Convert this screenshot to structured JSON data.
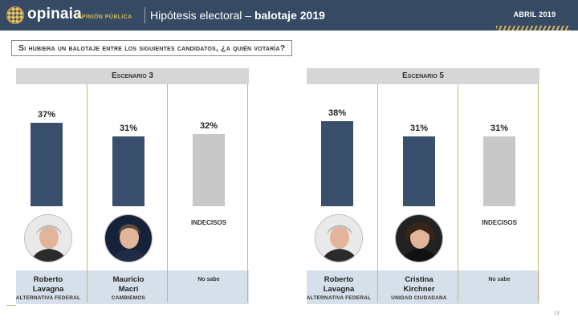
{
  "header": {
    "brand": "opinaia",
    "brand_sub": "OPINIÓN PÚBLICA",
    "title_plain": "Hipótesis electoral – ",
    "title_bold": "balotaje 2019",
    "date": "ABRIL 2019"
  },
  "question": "Si hubiera un balotaje entre los siguientes candidatos, ¿a quién votaría?",
  "chart_data": [
    {
      "type": "bar",
      "title": "Escenario 3",
      "categories": [
        "Roberto Lavagna",
        "Mauricio Macri",
        "INDECISOS"
      ],
      "values": [
        37,
        31,
        32
      ],
      "labels": [
        "37%",
        "31%",
        "32%"
      ],
      "colors": [
        "#3a4f6b",
        "#3a4f6b",
        "#c8c8c8"
      ],
      "candidates": [
        {
          "first": "Roberto",
          "last": "Lavagna",
          "party": "ALTERNATIVA FEDERAL"
        },
        {
          "first": "Mauricio",
          "last": "Macri",
          "party": "CAMBIEMOS"
        },
        {
          "undecided_label": "INDECISOS",
          "no_sabe": "No sabe"
        }
      ]
    },
    {
      "type": "bar",
      "title": "Escenario 5",
      "categories": [
        "Roberto Lavagna",
        "Cristina Kirchner",
        "INDECISOS"
      ],
      "values": [
        38,
        31,
        31
      ],
      "labels": [
        "38%",
        "31%",
        "31%"
      ],
      "colors": [
        "#3a4f6b",
        "#3a4f6b",
        "#c8c8c8"
      ],
      "candidates": [
        {
          "first": "Roberto",
          "last": "Lavagna",
          "party": "ALTERNATIVA FEDERAL"
        },
        {
          "first": "Cristina",
          "last": "Kirchner",
          "party": "UNIDAD CIUDADANA"
        },
        {
          "undecided_label": "INDECISOS",
          "no_sabe": "No sabe"
        }
      ]
    }
  ],
  "page_number": "13"
}
